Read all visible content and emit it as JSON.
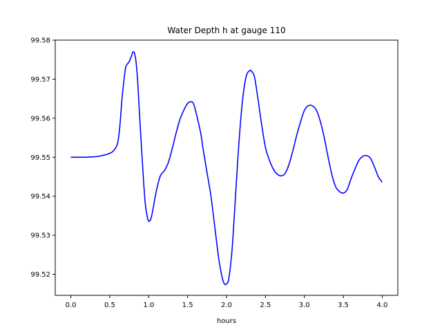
{
  "chart_data": {
    "type": "line",
    "title": "Water Depth h at gauge 110",
    "xlabel": "hours",
    "ylabel": "",
    "xlim": [
      -0.2,
      4.2
    ],
    "ylim": [
      99.5146,
      99.58
    ],
    "xticks": [
      0.0,
      0.5,
      1.0,
      1.5,
      2.0,
      2.5,
      3.0,
      3.5,
      4.0
    ],
    "xtick_labels": [
      "0.0",
      "0.5",
      "1.0",
      "1.5",
      "2.0",
      "2.5",
      "3.0",
      "3.5",
      "4.0"
    ],
    "yticks": [
      99.52,
      99.53,
      99.54,
      99.55,
      99.56,
      99.57,
      99.58
    ],
    "ytick_labels": [
      "99.52",
      "99.53",
      "99.54",
      "99.55",
      "99.56",
      "99.57",
      "99.58"
    ],
    "grid": false,
    "series": [
      {
        "color": "#0000ff",
        "x": [
          0.0,
          0.1,
          0.2,
          0.3,
          0.4,
          0.5,
          0.55,
          0.6,
          0.63,
          0.66,
          0.7,
          0.72,
          0.75,
          0.78,
          0.8,
          0.82,
          0.84,
          0.86,
          0.9,
          0.95,
          0.98,
          1.0,
          1.03,
          1.06,
          1.1,
          1.15,
          1.2,
          1.25,
          1.3,
          1.35,
          1.4,
          1.45,
          1.5,
          1.55,
          1.58,
          1.62,
          1.67,
          1.7,
          1.75,
          1.8,
          1.85,
          1.9,
          1.94,
          1.97,
          2.0,
          2.03,
          2.07,
          2.1,
          2.15,
          2.2,
          2.25,
          2.3,
          2.33,
          2.36,
          2.4,
          2.45,
          2.5,
          2.55,
          2.6,
          2.65,
          2.7,
          2.75,
          2.8,
          2.85,
          2.9,
          2.95,
          3.0,
          3.05,
          3.1,
          3.15,
          3.2,
          3.25,
          3.3,
          3.35,
          3.4,
          3.45,
          3.5,
          3.55,
          3.6,
          3.65,
          3.7,
          3.75,
          3.8,
          3.85,
          3.9,
          3.95,
          4.0
        ],
        "y": [
          99.55,
          99.55,
          99.55,
          99.5501,
          99.5504,
          99.551,
          99.5517,
          99.5535,
          99.558,
          99.5655,
          99.5725,
          99.5737,
          99.5745,
          99.576,
          99.577,
          99.5765,
          99.574,
          99.569,
          99.555,
          99.5395,
          99.535,
          99.5336,
          99.5343,
          99.5372,
          99.5415,
          99.5452,
          99.5465,
          99.5485,
          99.552,
          99.556,
          99.5596,
          99.562,
          99.5638,
          99.5642,
          99.5635,
          99.5605,
          99.556,
          99.552,
          99.546,
          99.54,
          99.532,
          99.524,
          99.5195,
          99.5176,
          99.5175,
          99.519,
          99.526,
          99.535,
          99.551,
          99.5635,
          99.5705,
          99.5722,
          99.5718,
          99.5705,
          99.5655,
          99.5585,
          99.5525,
          99.5493,
          99.547,
          99.5457,
          99.5452,
          99.5458,
          99.548,
          99.5515,
          99.5555,
          99.559,
          99.562,
          99.5632,
          99.5632,
          99.5622,
          99.5595,
          99.5555,
          99.5505,
          99.5458,
          99.5425,
          99.5412,
          99.5408,
          99.5417,
          99.5445,
          99.547,
          99.5492,
          99.5502,
          99.5504,
          99.5497,
          99.5475,
          99.545,
          99.5436
        ]
      }
    ]
  }
}
